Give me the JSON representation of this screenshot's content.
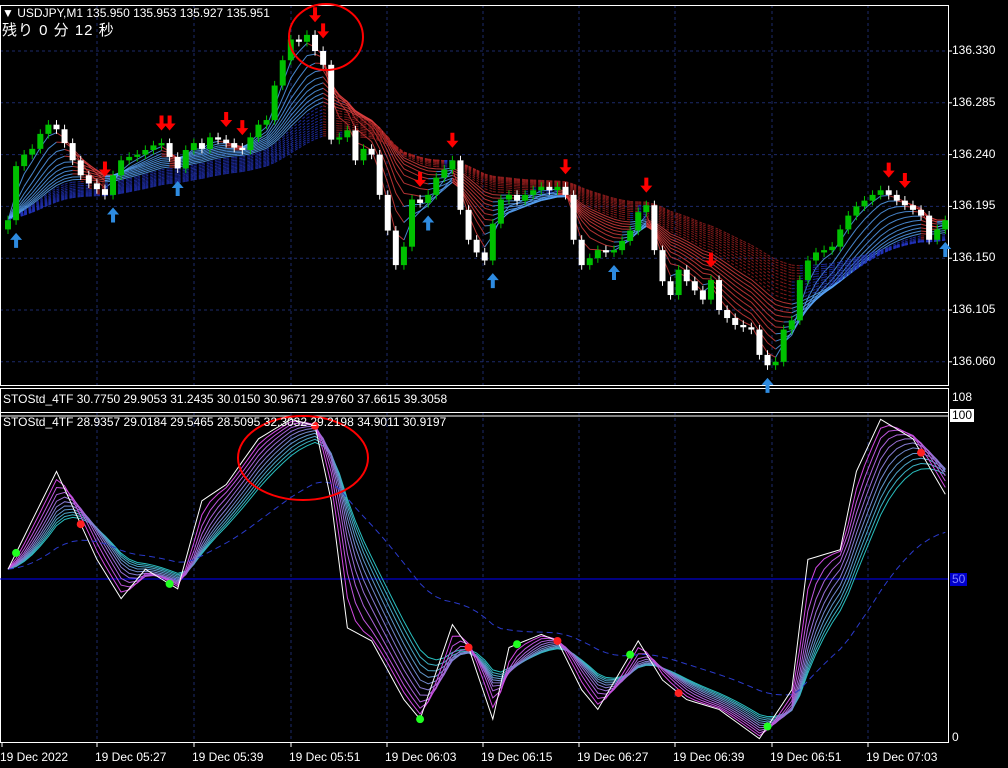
{
  "header": {
    "symbol_line": "USDJPY,M1  135.950 135.953 135.927 135.951",
    "countdown": "残り 0 分 12 秒"
  },
  "indicator_header": {
    "line1": "STOStd_4TF 30.7750 29.9053 31.2435 30.0150 30.9671 29.9760 37.6615 39.3058",
    "line2": "STOStd_4TF 28.9357 29.0184 29.5465 28.5095 32.3032 29.2198 34.9011 30.9197"
  },
  "colors": {
    "background": "#000000",
    "bull": "#00c000",
    "bear": "#ffffff",
    "buy_arrow": "#2e8be0",
    "sell_arrow": "#ff0000",
    "grid": "#1c2a6a",
    "level50": "#0000ff",
    "annotation": "#ff0000"
  },
  "chart_data": [
    {
      "type": "candlestick",
      "symbol": "USDJPY",
      "timeframe": "M1",
      "y_ticks": [
        "136.330",
        "136.285",
        "136.240",
        "136.195",
        "136.150",
        "136.105",
        "136.060"
      ],
      "x_ticks": [
        "19 Dec 2022",
        "19 Dec 05:27",
        "19 Dec 05:39",
        "19 Dec 05:51",
        "19 Dec 06:03",
        "19 Dec 06:15",
        "19 Dec 06:27",
        "19 Dec 06:39",
        "19 Dec 06:51",
        "19 Dec 07:03"
      ],
      "ylim": [
        136.04,
        136.365
      ],
      "first_open": 136.175,
      "closes": [
        136.183,
        136.23,
        136.24,
        136.245,
        136.258,
        136.266,
        136.262,
        136.25,
        136.235,
        136.222,
        136.215,
        136.21,
        136.205,
        136.222,
        136.235,
        136.238,
        136.24,
        136.244,
        136.248,
        136.25,
        136.238,
        136.228,
        136.244,
        136.25,
        136.245,
        136.255,
        136.253,
        136.25,
        136.246,
        136.244,
        136.255,
        136.266,
        136.27,
        136.3,
        136.322,
        136.34,
        136.338,
        136.344,
        136.33,
        136.318,
        136.253,
        136.255,
        136.261,
        136.235,
        136.245,
        136.24,
        136.205,
        136.174,
        136.144,
        136.16,
        136.201,
        136.198,
        136.205,
        136.22,
        136.227,
        136.235,
        136.192,
        136.166,
        136.155,
        136.148,
        136.18,
        136.201,
        136.205,
        136.2,
        136.205,
        136.209,
        136.212,
        136.209,
        136.212,
        136.205,
        136.166,
        136.144,
        136.15,
        136.157,
        136.155,
        136.157,
        136.165,
        136.174,
        136.19,
        136.196,
        136.157,
        136.13,
        136.118,
        136.14,
        136.13,
        136.122,
        136.114,
        136.131,
        136.105,
        136.098,
        136.092,
        136.09,
        136.088,
        136.066,
        136.057,
        136.06,
        136.088,
        136.096,
        136.131,
        136.148,
        136.155,
        136.157,
        136.16,
        136.175,
        136.187,
        136.195,
        136.2,
        136.205,
        136.209,
        136.205,
        136.2,
        136.196,
        136.192,
        136.187,
        136.166,
        136.175,
        136.183
      ],
      "buy_signals": [
        1,
        13,
        21,
        52,
        60,
        75,
        94,
        116
      ],
      "sell_signals": [
        12,
        19,
        20,
        27,
        29,
        38,
        39,
        51,
        55,
        69,
        79,
        87,
        109,
        111
      ]
    },
    {
      "type": "line",
      "name": "STOStd_4TF",
      "ylim": [
        0,
        100
      ],
      "y_ticks": [
        "108",
        "100",
        "50",
        "0"
      ],
      "level": 50,
      "main_anchors": [
        [
          0,
          53
        ],
        [
          6,
          83
        ],
        [
          11,
          56
        ],
        [
          14,
          44
        ],
        [
          17,
          53
        ],
        [
          21,
          47
        ],
        [
          24,
          74
        ],
        [
          27,
          79
        ],
        [
          31,
          93
        ],
        [
          35,
          99
        ],
        [
          38,
          97
        ],
        [
          40,
          74
        ],
        [
          42,
          35
        ],
        [
          45,
          31
        ],
        [
          49,
          13
        ],
        [
          51,
          7
        ],
        [
          55,
          36
        ],
        [
          57,
          29
        ],
        [
          60,
          7
        ],
        [
          62,
          29
        ],
        [
          66,
          33
        ],
        [
          68,
          31
        ],
        [
          71,
          16
        ],
        [
          73,
          10
        ],
        [
          78,
          31
        ],
        [
          81,
          19
        ],
        [
          84,
          13
        ],
        [
          88,
          10
        ],
        [
          93,
          1
        ],
        [
          97,
          16
        ],
        [
          99,
          56
        ],
        [
          103,
          59
        ],
        [
          105,
          83
        ],
        [
          108,
          99
        ],
        [
          112,
          93
        ],
        [
          116,
          76
        ]
      ],
      "peak_dots": [
        9,
        38,
        57,
        68,
        83,
        113
      ],
      "trough_dots": [
        1,
        20,
        51,
        63,
        77,
        94
      ]
    }
  ]
}
